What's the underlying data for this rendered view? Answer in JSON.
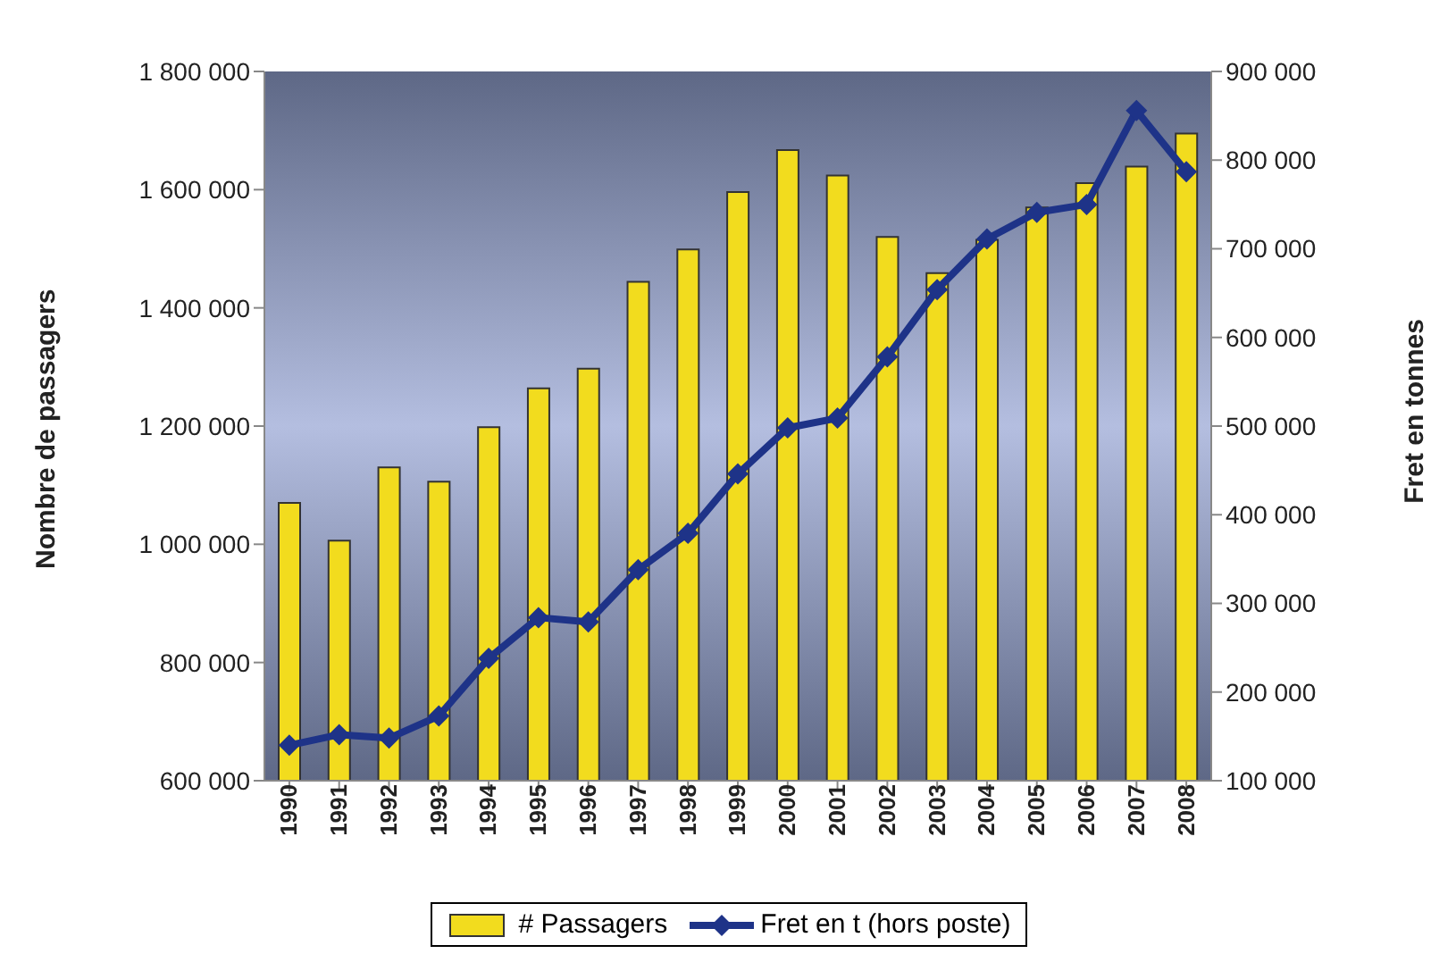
{
  "chart_data": {
    "type": "bar",
    "ylabel": "Nombre de passagers",
    "y2label": "Fret en tonnes",
    "categories": [
      "1990",
      "1991",
      "1992",
      "1993",
      "1994",
      "1995",
      "1996",
      "1997",
      "1998",
      "1999",
      "2000",
      "2001",
      "2002",
      "2003",
      "2004",
      "2005",
      "2006",
      "2007",
      "2008"
    ],
    "series": [
      {
        "name": "# Passagers",
        "color": "#f2dc1e",
        "values": [
          1070000,
          1006000,
          1130000,
          1106000,
          1198000,
          1264000,
          1297000,
          1444000,
          1499000,
          1596000,
          1667000,
          1624000,
          1520000,
          1459000,
          1515000,
          1570000,
          1611000,
          1639000,
          1695000
        ]
      },
      {
        "name": "Fret en t (hors poste)",
        "type": "line",
        "axis": "y2",
        "color": "#1e3388",
        "marker": "diamond",
        "values": [
          140000,
          152000,
          148000,
          173000,
          238000,
          284000,
          279000,
          338000,
          379000,
          446000,
          498000,
          509000,
          578000,
          654000,
          711000,
          741000,
          750000,
          856000,
          787000
        ]
      }
    ],
    "ylim": [
      600000,
      1800000
    ],
    "yticks": [
      600000,
      800000,
      1000000,
      1200000,
      1400000,
      1600000,
      1800000
    ],
    "y2lim": [
      100000,
      900000
    ],
    "y2ticks": [
      100000,
      200000,
      300000,
      400000,
      500000,
      600000,
      700000,
      800000,
      900000
    ],
    "legend": "bottom"
  }
}
